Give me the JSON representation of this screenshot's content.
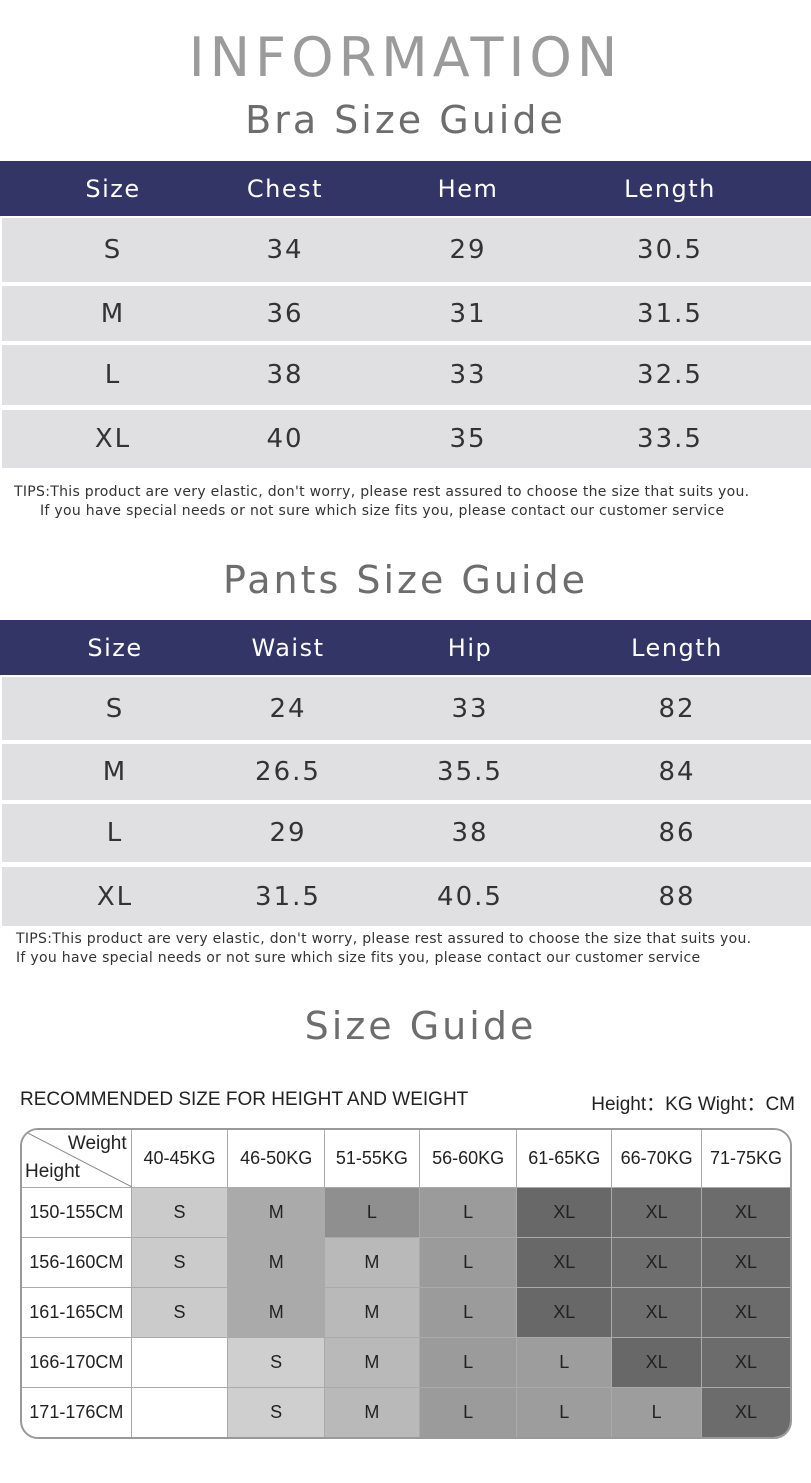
{
  "title": "INFORMATION",
  "bra": {
    "title": "Bra Size Guide",
    "headers": [
      "Size",
      "Chest",
      "Hem",
      "Length"
    ],
    "rows": [
      [
        "S",
        "34",
        "29",
        "30.5"
      ],
      [
        "M",
        "36",
        "31",
        "31.5"
      ],
      [
        "L",
        "38",
        "33",
        "32.5"
      ],
      [
        "XL",
        "40",
        "35",
        "33.5"
      ]
    ],
    "tips": [
      "TIPS:This product are very elastic, don't worry, please rest assured to choose the size that suits you.",
      "If you have special needs or not sure which size fits you, please contact our customer service"
    ]
  },
  "pants": {
    "title": "Pants Size Guide",
    "headers": [
      "Size",
      "Waist",
      "Hip",
      "Length"
    ],
    "rows": [
      [
        "S",
        "24",
        "33",
        "82"
      ],
      [
        "M",
        "26.5",
        "35.5",
        "84"
      ],
      [
        "L",
        "29",
        "38",
        "86"
      ],
      [
        "XL",
        "31.5",
        "40.5",
        "88"
      ]
    ],
    "tips": [
      "TIPS:This product are very elastic, don't worry, please rest assured to choose the size that suits you.",
      "If you have special needs or not sure which size fits you, please contact our customer service"
    ]
  },
  "guide": {
    "title": "Size Guide",
    "recommended": "RECOMMENDED SIZE FOR HEIGHT AND WEIGHT",
    "units": "Height：KG Wight：CM",
    "corner_top": "Weight",
    "corner_bottom": "Height",
    "weights": [
      "40-45KG",
      "46-50KG",
      "51-55KG",
      "56-60KG",
      "61-65KG",
      "66-70KG",
      "71-75KG"
    ],
    "rows": [
      {
        "height": "150-155CM",
        "sizes": [
          "S",
          "M",
          "L",
          "L",
          "XL",
          "XL",
          "XL"
        ],
        "colors": [
          "#cbcbcb",
          "#aaaaaa",
          "#8f8f8f",
          "#9b9b9b",
          "#686868",
          "#6e6e6e",
          "#6c6c6c"
        ]
      },
      {
        "height": "156-160CM",
        "sizes": [
          "S",
          "M",
          "M",
          "L",
          "XL",
          "XL",
          "XL"
        ],
        "colors": [
          "#cbcbcb",
          "#aaaaaa",
          "#b9b9b9",
          "#9b9b9b",
          "#686868",
          "#6e6e6e",
          "#6c6c6c"
        ]
      },
      {
        "height": "161-165CM",
        "sizes": [
          "S",
          "M",
          "M",
          "L",
          "XL",
          "XL",
          "XL"
        ],
        "colors": [
          "#cbcbcb",
          "#aaaaaa",
          "#b9b9b9",
          "#9b9b9b",
          "#686868",
          "#6e6e6e",
          "#6c6c6c"
        ]
      },
      {
        "height": "166-170CM",
        "sizes": [
          "",
          "S",
          "M",
          "L",
          "L",
          "XL",
          "XL"
        ],
        "colors": [
          "#ffffff",
          "#cfcfcf",
          "#b9b9b9",
          "#9b9b9b",
          "#9d9d9d",
          "#686868",
          "#6c6c6c"
        ]
      },
      {
        "height": "171-176CM",
        "sizes": [
          "",
          "S",
          "M",
          "L",
          "L",
          "L",
          "XL"
        ],
        "colors": [
          "#ffffff",
          "#cfcfcf",
          "#b9b9b9",
          "#9b9b9b",
          "#9d9d9d",
          "#9d9d9d",
          "#6c6c6c"
        ]
      }
    ]
  },
  "colors": {
    "header": "#333566",
    "row": "#e0dfe1"
  }
}
